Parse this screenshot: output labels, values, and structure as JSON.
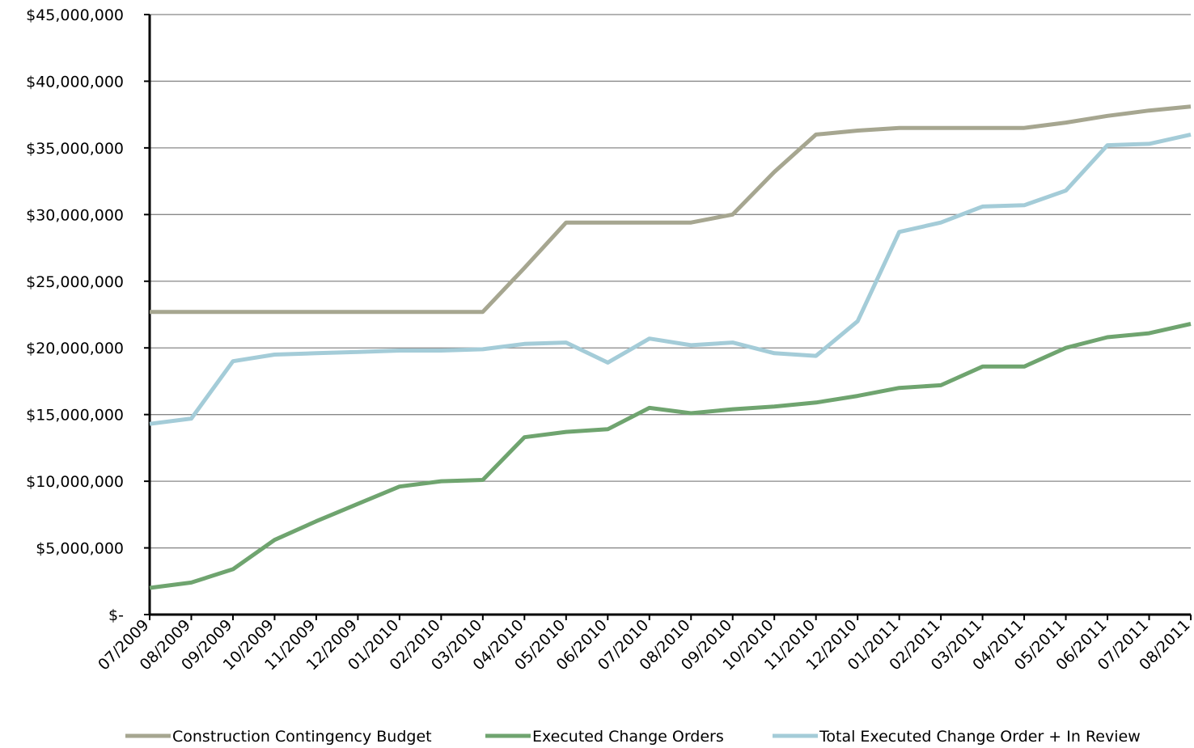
{
  "chart_data": {
    "type": "line",
    "categories": [
      "07/2009",
      "08/2009",
      "09/2009",
      "10/2009",
      "11/2009",
      "12/2009",
      "01/2010",
      "02/2010",
      "03/2010",
      "04/2010",
      "05/2010",
      "06/2010",
      "07/2010",
      "08/2010",
      "09/2010",
      "10/2010",
      "11/2010",
      "12/2010",
      "01/2011",
      "02/2011",
      "03/2011",
      "04/2011",
      "05/2011",
      "06/2011",
      "07/2011",
      "08/2011"
    ],
    "series": [
      {
        "name": "Construction Contingency Budget",
        "color": "#a6a690",
        "values": [
          22700000,
          22700000,
          22700000,
          22700000,
          22700000,
          22700000,
          22700000,
          22700000,
          22700000,
          26000000,
          29400000,
          29400000,
          29400000,
          29400000,
          30000000,
          33200000,
          36000000,
          36300000,
          36500000,
          36500000,
          36500000,
          36500000,
          36900000,
          37400000,
          37800000,
          38100000
        ]
      },
      {
        "name": "Executed Change Orders",
        "color": "#6fa46f",
        "values": [
          2000000,
          2400000,
          3400000,
          5600000,
          7000000,
          8300000,
          9600000,
          10000000,
          10100000,
          13300000,
          13700000,
          13900000,
          15500000,
          15100000,
          15400000,
          15600000,
          15900000,
          16400000,
          17000000,
          17200000,
          18600000,
          18600000,
          20000000,
          20800000,
          21100000,
          21800000
        ]
      },
      {
        "name": "Total Executed Change Order + In Review",
        "color": "#a4ccd8",
        "values": [
          14300000,
          14700000,
          19000000,
          19500000,
          19600000,
          19700000,
          19800000,
          19800000,
          19900000,
          20300000,
          20400000,
          18900000,
          20700000,
          20200000,
          20400000,
          19600000,
          19400000,
          22000000,
          28700000,
          29400000,
          30600000,
          30700000,
          31800000,
          35200000,
          35300000,
          36000000
        ]
      }
    ],
    "ylim": [
      0,
      45000000
    ],
    "yticks": [
      {
        "value": 0,
        "label": "$-"
      },
      {
        "value": 5000000,
        "label": "$5,000,000"
      },
      {
        "value": 10000000,
        "label": "$10,000,000"
      },
      {
        "value": 15000000,
        "label": "$15,000,000"
      },
      {
        "value": 20000000,
        "label": "$20,000,000"
      },
      {
        "value": 25000000,
        "label": "$25,000,000"
      },
      {
        "value": 30000000,
        "label": "$30,000,000"
      },
      {
        "value": 35000000,
        "label": "$35,000,000"
      },
      {
        "value": 40000000,
        "label": "$40,000,000"
      },
      {
        "value": 45000000,
        "label": "$45,000,000"
      }
    ],
    "grid": true,
    "legend": "bottom"
  }
}
